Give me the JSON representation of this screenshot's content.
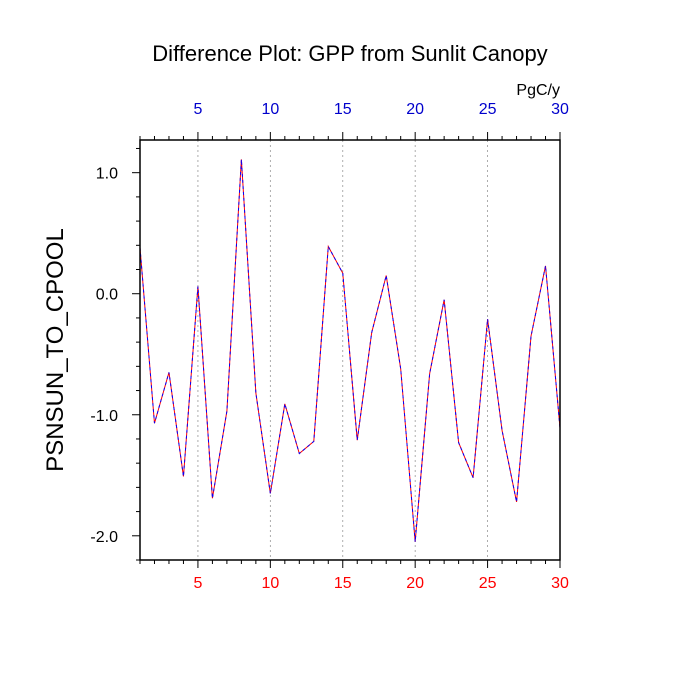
{
  "chart_data": {
    "type": "line",
    "title": "Difference Plot: GPP from Sunlit Canopy",
    "ylabel": "PSNSUN_TO_CPOOL",
    "top_axis_unit": "PgC/y",
    "xlim": [
      1,
      30
    ],
    "ylim": [
      -2.2,
      1.27
    ],
    "x_ticks": [
      5,
      10,
      15,
      20,
      25,
      30
    ],
    "x_tick_labels": [
      "5",
      "10",
      "15",
      "20",
      "25",
      "30"
    ],
    "y_ticks": [
      1.0,
      0.0,
      -1.0,
      -2.0
    ],
    "y_tick_labels": [
      "1.0",
      "0.0",
      "-1.0",
      "-2.0"
    ],
    "grid": "vertical-dotted",
    "colors": {
      "line_primary": "#ff0000",
      "line_secondary": "#0000ff",
      "bottom_tick_labels": "#ff0000",
      "top_tick_labels": "#0000cc",
      "axis": "#000000",
      "grid": "#999999"
    },
    "series": [
      {
        "x": [
          1,
          2,
          3,
          4,
          5,
          6,
          7,
          8,
          9,
          10,
          11,
          12,
          13,
          14,
          15,
          16,
          17,
          18,
          19,
          20,
          21,
          22,
          23,
          24,
          25,
          26,
          27,
          28,
          29,
          30
        ],
        "values": [
          0.38,
          -1.07,
          -0.65,
          -1.51,
          0.06,
          -1.69,
          -0.97,
          1.11,
          -0.82,
          -1.65,
          -0.91,
          -1.32,
          -1.22,
          0.39,
          0.17,
          -1.21,
          -0.32,
          0.15,
          -0.62,
          -2.05,
          -0.66,
          -0.05,
          -1.23,
          -1.52,
          -0.21,
          -1.13,
          -1.72,
          -0.35,
          0.23,
          -1.11
        ]
      }
    ]
  }
}
